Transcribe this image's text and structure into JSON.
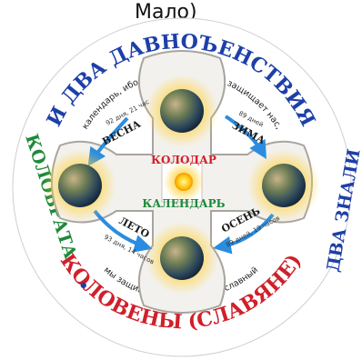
{
  "top_fragment": "Мало)",
  "outer_ring": {
    "top_text": "И ДВА ДАВНОЪЕНСТВИЯ",
    "right_text": "ДВА ЗНАЛИ",
    "left_text": "КОЛОВРАТА",
    "bottom_text": "КОЛОВЕНЫ (СЛАВЯНЕ)",
    "separator": "•"
  },
  "inner_ring": {
    "upper_text": "календарь, ибо старый календарь защищает нас,",
    "lower_text": "мы защищаем старый православный"
  },
  "center": {
    "word_top": "КОЛОДАР",
    "word_bottom": "КАЛЕНДАРЬ"
  },
  "seasons": [
    {
      "name": "ВЕСНА",
      "note": "92 дня, 21 час"
    },
    {
      "name": "ЗИМА",
      "note": "89 дней"
    },
    {
      "name": "ЛЕТО",
      "note": "93 дня, 14 часов"
    },
    {
      "name": "ОСЕНЬ",
      "note": "89 дней, 19 часов"
    }
  ],
  "colors": {
    "ring_blue": "#1d3fa8",
    "ring_red": "#d0202a",
    "ring_green": "#1d8a3a",
    "arrow_blue": "#2a8de0",
    "sun": "#ffcc1a",
    "cross_fill": "#f3f1ee",
    "cross_stroke": "#a8a49e"
  }
}
